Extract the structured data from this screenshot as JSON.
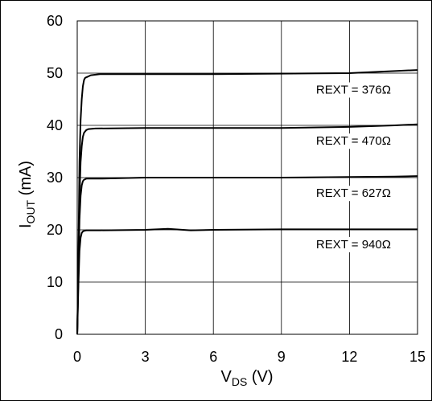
{
  "chart_data": {
    "type": "line",
    "title": "",
    "xlabel": {
      "main": "V",
      "sub": "DS",
      "unit": " (V)"
    },
    "ylabel": {
      "main": "I",
      "sub": "OUT",
      "unit": " (mA)"
    },
    "xlim": [
      0,
      15
    ],
    "ylim": [
      0,
      60
    ],
    "xticks": [
      0,
      3,
      6,
      9,
      12,
      15
    ],
    "yticks": [
      0,
      10,
      20,
      30,
      40,
      50,
      60
    ],
    "grid": true,
    "series": [
      {
        "name": "REXT = 376Ω",
        "x": [
          0,
          0.05,
          0.1,
          0.15,
          0.2,
          0.25,
          0.3,
          0.35,
          0.45,
          0.6,
          1.0,
          3,
          6,
          9,
          12,
          14,
          15
        ],
        "y": [
          0,
          14,
          33,
          41,
          45,
          47.5,
          48.7,
          49.1,
          49.3,
          49.6,
          49.8,
          49.8,
          49.8,
          49.9,
          50.0,
          50.4,
          50.6
        ]
      },
      {
        "name": "REXT = 470Ω",
        "x": [
          0,
          0.05,
          0.1,
          0.15,
          0.2,
          0.25,
          0.3,
          0.4,
          0.5,
          0.8,
          3,
          6,
          9,
          12,
          14,
          15
        ],
        "y": [
          0,
          12,
          26,
          33,
          36,
          37.8,
          38.6,
          39.1,
          39.3,
          39.4,
          39.5,
          39.5,
          39.5,
          39.7,
          40.0,
          40.2
        ]
      },
      {
        "name": "REXT = 627Ω",
        "x": [
          0,
          0.05,
          0.1,
          0.15,
          0.2,
          0.25,
          0.3,
          0.4,
          0.5,
          1.0,
          3,
          6,
          9,
          12,
          14,
          15
        ],
        "y": [
          0,
          11,
          22,
          26.5,
          28.5,
          29.3,
          29.6,
          29.8,
          29.8,
          29.8,
          30.0,
          30.0,
          30.0,
          30.1,
          30.2,
          30.3
        ]
      },
      {
        "name": "REXT = 940Ω",
        "x": [
          0,
          0.05,
          0.1,
          0.15,
          0.2,
          0.25,
          0.3,
          0.4,
          0.5,
          1.0,
          3,
          4,
          5,
          6,
          9,
          12,
          15
        ],
        "y": [
          0,
          9,
          16,
          18.5,
          19.4,
          19.7,
          19.8,
          19.9,
          19.9,
          19.9,
          20.0,
          20.2,
          19.9,
          20.0,
          20.1,
          20.1,
          20.1
        ]
      }
    ],
    "annotations": [
      {
        "text": "REXT = 376Ω",
        "x": 12.0,
        "y": 47.0
      },
      {
        "text": "REXT = 470Ω",
        "x": 12.0,
        "y": 37.2
      },
      {
        "text": "REXT = 627Ω",
        "x": 12.0,
        "y": 27.2
      },
      {
        "text": "REXT = 940Ω",
        "x": 12.0,
        "y": 17.4
      }
    ]
  }
}
